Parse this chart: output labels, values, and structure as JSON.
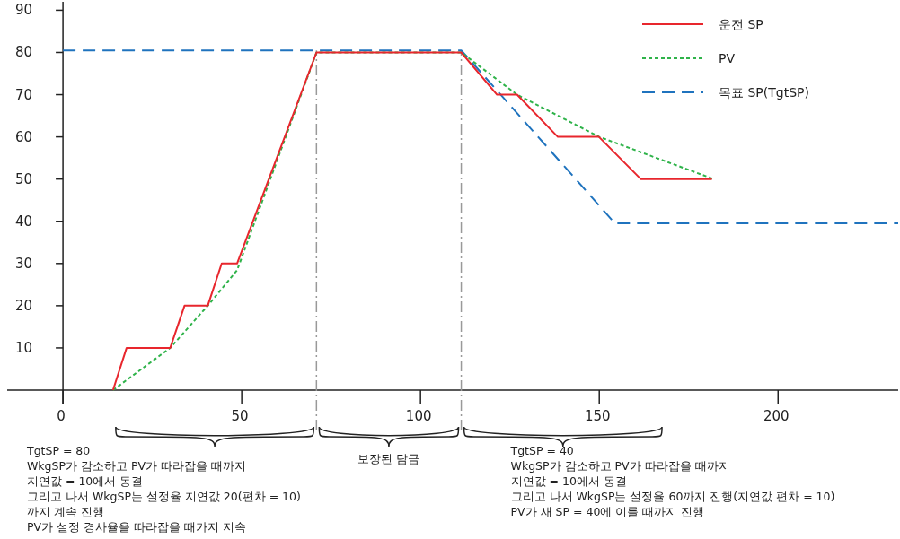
{
  "chart_data": {
    "type": "line",
    "xlim": [
      -15.6,
      233.6
    ],
    "ylim": [
      0,
      92
    ],
    "xticks": [
      0,
      50,
      100,
      150,
      200
    ],
    "yticks": [
      10,
      20,
      30,
      40,
      50,
      60,
      70,
      80,
      90
    ],
    "grid": false,
    "legend": "top right",
    "series": [
      {
        "name": "운전 SP",
        "color": "#e8262d",
        "line_style": "solid",
        "x": [
          14,
          17.8,
          30,
          34,
          40.5,
          44.4,
          48.7,
          70.9,
          111.4,
          121.4,
          127,
          138.4,
          149.9,
          161.6,
          181.5
        ],
        "values": [
          0,
          10,
          10,
          20,
          20,
          30,
          30,
          80,
          80,
          70,
          70,
          60,
          60,
          50,
          50
        ]
      },
      {
        "name": "PV",
        "color": "#2fb34a",
        "line_style": "dotted",
        "x": [
          14,
          30,
          40.5,
          48.7,
          70.9,
          111.4,
          127,
          150,
          182
        ],
        "values": [
          0,
          10,
          20,
          28.4,
          80,
          80,
          70,
          60,
          50
        ]
      },
      {
        "name": "목표 SP(TgtSP)",
        "color": "#1f73be",
        "line_style": "dashed",
        "x": [
          0,
          111.4,
          154.4,
          233.6
        ],
        "values": [
          80.5,
          80.5,
          39.5,
          39.5
        ]
      }
    ],
    "ref_lines": [
      {
        "axis": "x",
        "value": 70.9,
        "color": "#999999",
        "line_style": "dashed"
      },
      {
        "axis": "x",
        "value": 111.4,
        "color": "#999999",
        "line_style": "dashed"
      }
    ],
    "annotations": [
      "TgtSP = 80\nWkgSP가 감소하고 PV가 따라잡을 때까지\n지연값 = 10에서 동결\n그리고 나서 WkgSP는 설정율 지연값 20(편차 = 10)\n까지 계속 진행\nPV가 설정 경사율을 따라잡을 때가지 지속",
      "보장된 담금",
      "TgtSP = 40\nWkgSP가 감소하고 PV가 따라잡을 때까지\n지연값 = 10에서 동결\n그리고 나서 WkgSP는 설정율 60까지 진행(지연값 편차 = 10)\nPV가 새 SP = 40에 이를 때까지 진행"
    ]
  }
}
